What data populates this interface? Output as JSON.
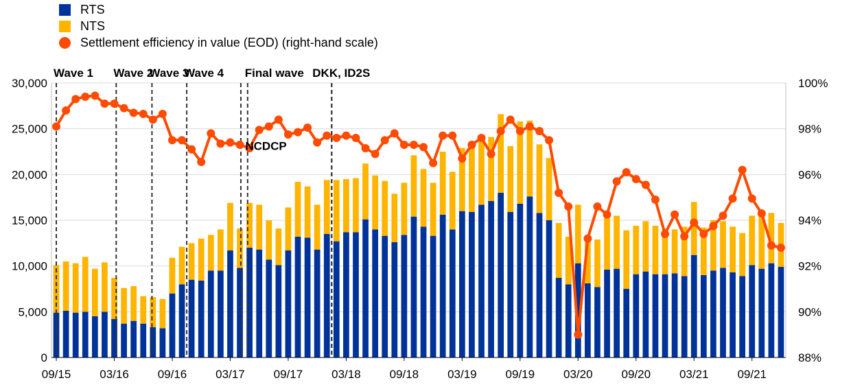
{
  "chart_data": {
    "type": "bar",
    "title": "",
    "stacked": true,
    "legend": {
      "placement": "top-left",
      "entries": [
        {
          "key": "rts",
          "label": "RTS",
          "color": "#003399",
          "kind": "bar"
        },
        {
          "key": "nts",
          "label": "NTS",
          "color": "#FFB400",
          "kind": "bar"
        },
        {
          "key": "eff",
          "label": "Settlement efficiency in value (EOD) (right-hand scale)",
          "color": "#FF4B00",
          "kind": "line"
        }
      ]
    },
    "y_left": {
      "min": 0,
      "max": 30000,
      "ticks": [
        "0",
        "5,000",
        "10,000",
        "15,000",
        "20,000",
        "25,000",
        "30,000"
      ]
    },
    "y_right": {
      "min": 88,
      "max": 100,
      "ticks": [
        "88%",
        "90%",
        "92%",
        "94%",
        "96%",
        "98%",
        "100%"
      ]
    },
    "grid": true,
    "x_tick_labels": [
      {
        "index": 0,
        "label": "09/15"
      },
      {
        "index": 6,
        "label": "03/16"
      },
      {
        "index": 12,
        "label": "09/16"
      },
      {
        "index": 18,
        "label": "03/17"
      },
      {
        "index": 24,
        "label": "09/17"
      },
      {
        "index": 30,
        "label": "03/18"
      },
      {
        "index": 36,
        "label": "09/18"
      },
      {
        "index": 42,
        "label": "03/19"
      },
      {
        "index": 48,
        "label": "09/19"
      },
      {
        "index": 54,
        "label": "03/20"
      },
      {
        "index": 60,
        "label": "09/20"
      },
      {
        "index": 66,
        "label": "03/21"
      },
      {
        "index": 72,
        "label": "09/21"
      }
    ],
    "months": [
      "09/15",
      "10/15",
      "11/15",
      "12/15",
      "01/16",
      "02/16",
      "03/16",
      "04/16",
      "05/16",
      "06/16",
      "07/16",
      "08/16",
      "09/16",
      "10/16",
      "11/16",
      "12/16",
      "01/17",
      "02/17",
      "03/17",
      "04/17",
      "05/17",
      "06/17",
      "07/17",
      "08/17",
      "09/17",
      "10/17",
      "11/17",
      "12/17",
      "01/18",
      "02/18",
      "03/18",
      "04/18",
      "05/18",
      "06/18",
      "07/18",
      "08/18",
      "09/18",
      "10/18",
      "11/18",
      "12/18",
      "01/19",
      "02/19",
      "03/19",
      "04/19",
      "05/19",
      "06/19",
      "07/19",
      "08/19",
      "09/19",
      "10/19",
      "11/19",
      "12/19",
      "01/20",
      "02/20",
      "03/20",
      "04/20",
      "05/20",
      "06/20",
      "07/20",
      "08/20",
      "09/20",
      "10/20",
      "11/20",
      "12/20",
      "01/21",
      "02/21",
      "03/21",
      "04/21",
      "05/21",
      "06/21",
      "07/21",
      "08/21",
      "09/21",
      "10/21",
      "11/21",
      "12/21"
    ],
    "series": [
      {
        "name": "RTS",
        "axis": "left",
        "values": [
          4900,
          5100,
          4900,
          5000,
          4500,
          5000,
          4200,
          3700,
          4000,
          3700,
          3300,
          3200,
          7000,
          8000,
          8500,
          8400,
          9500,
          9500,
          11700,
          9800,
          12000,
          11800,
          10700,
          10100,
          11700,
          13200,
          13100,
          11800,
          13500,
          12700,
          13700,
          13700,
          15100,
          14000,
          13300,
          12600,
          13400,
          15400,
          14300,
          13300,
          15600,
          14000,
          16000,
          15900,
          16700,
          17100,
          18000,
          15900,
          16800,
          17600,
          15800,
          15000,
          8700,
          8000,
          10300,
          8100,
          7700,
          9600,
          9700,
          7500,
          9100,
          9400,
          9100,
          9100,
          9200,
          8900,
          11200,
          9000,
          9500,
          9800,
          9300,
          8900,
          10100,
          9700,
          10300,
          9900
        ]
      },
      {
        "name": "NTS",
        "axis": "left",
        "values": [
          5200,
          5400,
          5400,
          6000,
          5200,
          5400,
          4500,
          3900,
          3800,
          3000,
          3300,
          3200,
          3900,
          4100,
          4000,
          4600,
          3900,
          4500,
          5200,
          4300,
          4900,
          4900,
          4300,
          4000,
          4700,
          6000,
          5600,
          4900,
          5900,
          6700,
          5800,
          5900,
          6100,
          5900,
          6000,
          5300,
          5700,
          6700,
          6300,
          5800,
          6900,
          6300,
          6900,
          7200,
          7100,
          7000,
          8600,
          7200,
          9000,
          8300,
          7500,
          6800,
          6000,
          5200,
          6400,
          4700,
          5200,
          6300,
          5800,
          6400,
          5300,
          5500,
          5300,
          5000,
          4800,
          5400,
          5800,
          5200,
          5500,
          5100,
          5000,
          4700,
          5400,
          5900,
          5500,
          4800
        ]
      },
      {
        "name": "Settlement efficiency in value (EOD) (right-hand scale)",
        "axis": "right",
        "values": [
          98.1,
          98.8,
          99.3,
          99.4,
          99.45,
          99.1,
          99.1,
          98.9,
          98.7,
          98.65,
          98.4,
          98.65,
          97.5,
          97.5,
          97.1,
          96.55,
          97.8,
          97.35,
          97.4,
          97.3,
          97.15,
          97.95,
          98.1,
          98.4,
          97.75,
          97.85,
          98.05,
          97.4,
          97.7,
          97.6,
          97.7,
          97.6,
          97.15,
          96.9,
          97.5,
          97.8,
          97.3,
          97.3,
          97.2,
          96.5,
          97.7,
          97.7,
          96.7,
          97.3,
          97.6,
          96.9,
          97.9,
          98.4,
          97.9,
          98.1,
          97.9,
          97.5,
          95.2,
          94.6,
          89.0,
          93.2,
          94.6,
          94.25,
          95.7,
          96.1,
          95.8,
          95.55,
          94.9,
          93.4,
          94.25,
          93.3,
          93.9,
          93.4,
          93.75,
          94.2,
          94.95,
          96.2,
          94.95,
          94.3,
          92.9,
          92.8
        ]
      }
    ],
    "events": [
      {
        "label": "Wave 1",
        "position": 0.0
      },
      {
        "label": "Wave 2",
        "position": 6.2
      },
      {
        "label": "Wave 3",
        "position": 9.9
      },
      {
        "label": "Wave 4",
        "position": 13.5
      },
      {
        "label": "",
        "position": 19.1
      },
      {
        "label": "Final wave",
        "position": 19.8
      },
      {
        "label": "",
        "position": 28.5
      },
      {
        "label": "DKK, ID2S",
        "position": 28.5
      }
    ],
    "annotations": [
      {
        "label": "NCDCP"
      }
    ]
  }
}
